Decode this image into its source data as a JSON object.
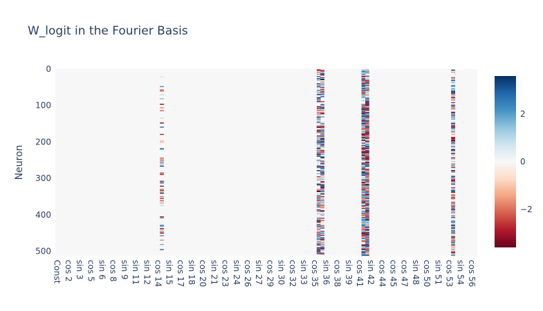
{
  "chart_data": {
    "type": "heatmap",
    "title": "W_logit in the Fourier Basis",
    "ylabel": "Neuron",
    "xlabel": "",
    "x_tick_labels": [
      "Const",
      "cos 2",
      "sin 3",
      "cos 5",
      "sin 6",
      "cos 8",
      "sin 9",
      "sin 11",
      "sin 12",
      "cos 14",
      "sin 15",
      "cos 17",
      "sin 18",
      "cos 20",
      "sin 21",
      "cos 23",
      "sin 24",
      "cos 26",
      "sin 27",
      "cos 29",
      "sin 30",
      "cos 32",
      "sin 33",
      "cos 35",
      "sin 36",
      "cos 38",
      "sin 39",
      "cos 41",
      "sin 42",
      "cos 44",
      "cos 45",
      "cos 47",
      "sin 48",
      "cos 50",
      "sin 51",
      "cos 53",
      "sin 54",
      "cos 56"
    ],
    "y_tick_labels": [
      "0",
      "100",
      "200",
      "300",
      "400",
      "500"
    ],
    "y_ticks": [
      0,
      100,
      200,
      300,
      400,
      500
    ],
    "n_rows": 512,
    "n_cols": 113,
    "ylim": [
      512,
      0
    ],
    "colorscale": "RdBu",
    "colorbar": {
      "ticks": [
        2,
        0,
        -2
      ],
      "tick_labels": [
        "2",
        "0",
        "−2"
      ],
      "zmin": -3.6,
      "zmax": 3.6
    },
    "active_columns": [
      {
        "col": 28,
        "tick_label": "cos 14",
        "density": "sparse"
      },
      {
        "col": 70,
        "tick_label": "cos 35",
        "density": "medium"
      },
      {
        "col": 71,
        "tick_label": "sin 36",
        "density": "medium"
      },
      {
        "col": 82,
        "tick_label": "cos 41",
        "density": "dense"
      },
      {
        "col": 83,
        "tick_label": "sin 42",
        "density": "dense"
      },
      {
        "col": 106,
        "tick_label": "cos 53",
        "density": "medium"
      }
    ],
    "colors": {
      "neutral": "#f7f7f7",
      "positive_max": "#053061",
      "negative_max": "#67001f"
    }
  }
}
